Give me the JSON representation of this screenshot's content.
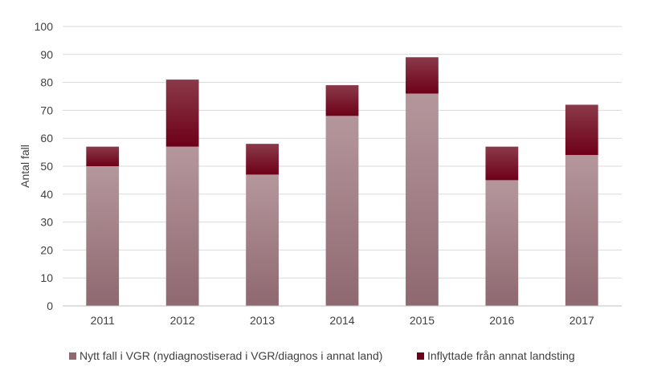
{
  "chart_data": {
    "type": "bar",
    "stacked": true,
    "title": "",
    "xlabel": "",
    "ylabel": "Antal fall",
    "ylim": [
      0,
      100
    ],
    "yticks": [
      0,
      10,
      20,
      30,
      40,
      50,
      60,
      70,
      80,
      90,
      100
    ],
    "categories": [
      "2011",
      "2012",
      "2013",
      "2014",
      "2015",
      "2016",
      "2017"
    ],
    "series": [
      {
        "name": "Nytt fall i VGR (nydiagnostiserad i VGR/diagnos i annat land)",
        "values": [
          50,
          57,
          47,
          68,
          76,
          45,
          54
        ],
        "color_top": "#b4979c",
        "color_bottom": "#8f6870"
      },
      {
        "name": "Inflyttade från annat landsting",
        "values": [
          7,
          24,
          11,
          11,
          13,
          12,
          18
        ],
        "color_top": "#8a3a4a",
        "color_bottom": "#6e0018"
      }
    ],
    "grid": true,
    "legend_position": "bottom"
  }
}
